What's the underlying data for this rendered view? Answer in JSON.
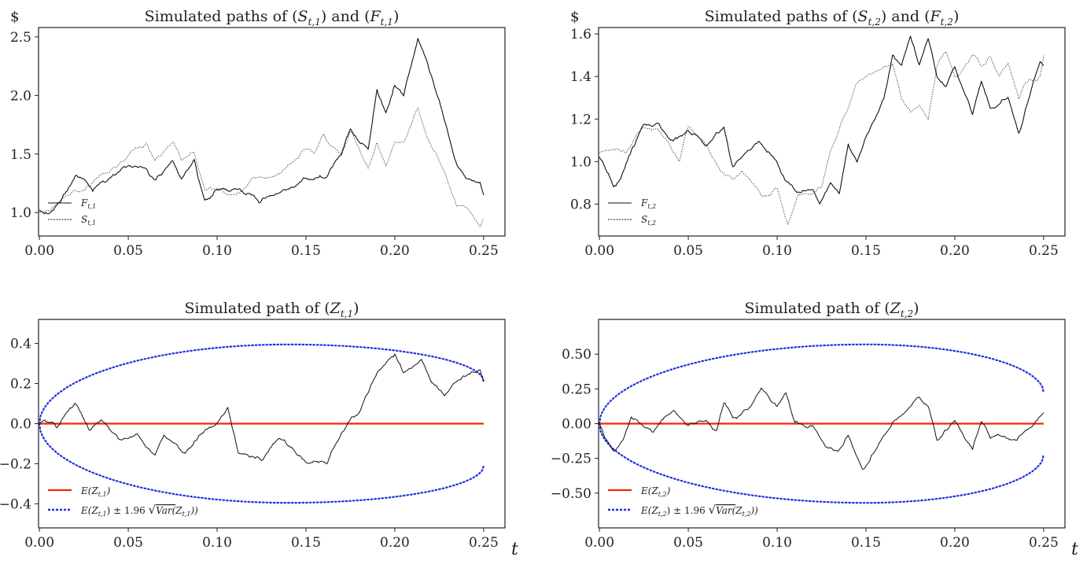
{
  "chart_data": [
    {
      "type": "line",
      "title": "Simulated paths of (S_t,1) and (F_t,1)",
      "title_parts": [
        "Simulated paths of (",
        "S",
        "t,1",
        ") and (",
        "F",
        "t,1",
        ")"
      ],
      "ylabel": "$",
      "xlabel": "",
      "xlim": [
        -0.0005,
        0.262
      ],
      "ylim": [
        0.8,
        2.58
      ],
      "xticks": [
        0.0,
        0.05,
        0.1,
        0.15,
        0.2,
        0.25
      ],
      "xtick_labels": [
        "0.00",
        "0.05",
        "0.10",
        "0.15",
        "0.20",
        "0.25"
      ],
      "yticks": [
        1.0,
        1.5,
        2.0,
        2.5
      ],
      "ytick_labels": [
        "1.0",
        "1.5",
        "2.0",
        "2.5"
      ],
      "legend": "lower-left",
      "series": [
        {
          "name": "F_t,1",
          "label_main": "F",
          "label_sub": "t,1",
          "style": "solid",
          "color": "#111111",
          "x": [
            0,
            0.005,
            0.012,
            0.02,
            0.03,
            0.04,
            0.05,
            0.06,
            0.065,
            0.075,
            0.08,
            0.087,
            0.093,
            0.1,
            0.11,
            0.125,
            0.13,
            0.14,
            0.15,
            0.16,
            0.17,
            0.175,
            0.18,
            0.185,
            0.19,
            0.195,
            0.2,
            0.205,
            0.21,
            0.213,
            0.218,
            0.225,
            0.235,
            0.24,
            0.248,
            0.25
          ],
          "y": [
            1.0,
            0.99,
            1.1,
            1.3,
            1.2,
            1.3,
            1.4,
            1.38,
            1.27,
            1.45,
            1.28,
            1.45,
            1.1,
            1.2,
            1.2,
            1.08,
            1.15,
            1.2,
            1.3,
            1.3,
            1.5,
            1.72,
            1.6,
            1.55,
            2.05,
            1.85,
            2.1,
            2.0,
            2.3,
            2.48,
            2.3,
            1.95,
            1.4,
            1.3,
            1.25,
            1.15
          ]
        },
        {
          "name": "S_t,1",
          "label_main": "S",
          "label_sub": "t,1",
          "style": "dotted",
          "color": "#555555",
          "x": [
            0,
            0.005,
            0.012,
            0.02,
            0.03,
            0.04,
            0.05,
            0.06,
            0.065,
            0.075,
            0.08,
            0.087,
            0.093,
            0.1,
            0.11,
            0.12,
            0.13,
            0.14,
            0.15,
            0.155,
            0.16,
            0.165,
            0.17,
            0.175,
            0.18,
            0.185,
            0.19,
            0.195,
            0.2,
            0.205,
            0.213,
            0.218,
            0.225,
            0.235,
            0.24,
            0.248,
            0.25
          ],
          "y": [
            1.0,
            1.02,
            1.1,
            1.2,
            1.25,
            1.35,
            1.48,
            1.58,
            1.45,
            1.6,
            1.45,
            1.52,
            1.2,
            1.2,
            1.15,
            1.3,
            1.3,
            1.4,
            1.55,
            1.5,
            1.68,
            1.55,
            1.5,
            1.7,
            1.55,
            1.38,
            1.6,
            1.4,
            1.6,
            1.6,
            1.9,
            1.65,
            1.45,
            1.05,
            1.05,
            0.88,
            0.95
          ]
        }
      ]
    },
    {
      "type": "line",
      "title": "Simulated paths of (S_t,2) and (F_t,2)",
      "title_parts": [
        "Simulated paths of (",
        "S",
        "t,2",
        ") and (",
        "F",
        "t,2",
        ")"
      ],
      "ylabel": "$",
      "xlabel": "",
      "xlim": [
        -0.0005,
        0.262
      ],
      "ylim": [
        0.65,
        1.63
      ],
      "xticks": [
        0.0,
        0.05,
        0.1,
        0.15,
        0.2,
        0.25
      ],
      "xtick_labels": [
        "0.00",
        "0.05",
        "0.10",
        "0.15",
        "0.20",
        "0.25"
      ],
      "yticks": [
        0.8,
        1.0,
        1.2,
        1.4,
        1.6
      ],
      "ytick_labels": [
        "0.8",
        "1.0",
        "1.2",
        "1.4",
        "1.6"
      ],
      "legend": "lower-left",
      "series": [
        {
          "name": "F_t,2",
          "label_main": "F",
          "label_sub": "t,2",
          "style": "solid",
          "color": "#111111",
          "x": [
            0,
            0.002,
            0.008,
            0.012,
            0.018,
            0.025,
            0.033,
            0.04,
            0.05,
            0.06,
            0.07,
            0.075,
            0.09,
            0.1,
            0.105,
            0.112,
            0.12,
            0.124,
            0.13,
            0.135,
            0.14,
            0.145,
            0.15,
            0.16,
            0.165,
            0.17,
            0.175,
            0.18,
            0.185,
            0.19,
            0.195,
            0.2,
            0.21,
            0.215,
            0.22,
            0.23,
            0.236,
            0.24,
            0.248,
            0.25
          ],
          "y": [
            1.02,
            1.0,
            0.88,
            0.92,
            1.05,
            1.18,
            1.18,
            1.1,
            1.15,
            1.07,
            1.16,
            0.97,
            1.1,
            1.0,
            0.9,
            0.85,
            0.87,
            0.8,
            0.9,
            0.85,
            1.08,
            1.0,
            1.12,
            1.3,
            1.5,
            1.45,
            1.59,
            1.45,
            1.58,
            1.4,
            1.35,
            1.45,
            1.22,
            1.38,
            1.25,
            1.3,
            1.13,
            1.25,
            1.47,
            1.45
          ]
        },
        {
          "name": "S_t,2",
          "label_main": "S",
          "label_sub": "t,2",
          "style": "dotted",
          "color": "#555555",
          "x": [
            0,
            0.008,
            0.015,
            0.025,
            0.033,
            0.045,
            0.05,
            0.06,
            0.068,
            0.075,
            0.08,
            0.092,
            0.1,
            0.106,
            0.112,
            0.12,
            0.125,
            0.13,
            0.14,
            0.145,
            0.15,
            0.155,
            0.165,
            0.17,
            0.175,
            0.18,
            0.185,
            0.19,
            0.195,
            0.2,
            0.21,
            0.215,
            0.22,
            0.225,
            0.23,
            0.236,
            0.24,
            0.248,
            0.25
          ],
          "y": [
            1.04,
            1.06,
            1.04,
            1.17,
            1.15,
            1.0,
            1.17,
            1.08,
            0.96,
            0.92,
            0.95,
            0.83,
            0.88,
            0.7,
            0.85,
            0.85,
            0.88,
            1.05,
            1.25,
            1.38,
            1.4,
            1.42,
            1.45,
            1.3,
            1.24,
            1.26,
            1.2,
            1.45,
            1.52,
            1.4,
            1.5,
            1.45,
            1.5,
            1.4,
            1.46,
            1.3,
            1.38,
            1.4,
            1.5
          ]
        }
      ]
    },
    {
      "type": "line",
      "title": "Simulated path of (Z_t,1)",
      "title_parts": [
        "Simulated path of (",
        "Z",
        "t,1",
        ")"
      ],
      "ylabel": "",
      "xlabel": "t",
      "xlim": [
        -0.0005,
        0.262
      ],
      "ylim": [
        -0.52,
        0.52
      ],
      "xticks": [
        0.0,
        0.05,
        0.1,
        0.15,
        0.2,
        0.25
      ],
      "xtick_labels": [
        "0.00",
        "0.05",
        "0.10",
        "0.15",
        "0.20",
        "0.25"
      ],
      "yticks": [
        -0.4,
        -0.2,
        0.0,
        0.2,
        0.4
      ],
      "ytick_labels": [
        "−0.4",
        "−0.2",
        "0.0",
        "0.2",
        "0.4"
      ],
      "legend": "lower-left",
      "band_amplitude_max": 0.395,
      "band_end_value": 0.21,
      "series": [
        {
          "name": "Z_t,1",
          "style": "solid",
          "color": "#111111",
          "x": [
            0,
            0.003,
            0.01,
            0.02,
            0.028,
            0.035,
            0.045,
            0.055,
            0.065,
            0.07,
            0.082,
            0.09,
            0.1,
            0.106,
            0.112,
            0.125,
            0.135,
            0.15,
            0.162,
            0.17,
            0.175,
            0.18,
            0.19,
            0.2,
            0.205,
            0.215,
            0.22,
            0.228,
            0.233,
            0.24,
            0.248,
            0.25
          ],
          "y": [
            0.0,
            0.02,
            -0.02,
            0.1,
            -0.03,
            0.02,
            -0.08,
            -0.05,
            -0.16,
            -0.06,
            -0.15,
            -0.06,
            0.0,
            0.08,
            -0.15,
            -0.18,
            -0.07,
            -0.19,
            -0.2,
            -0.05,
            0.02,
            0.05,
            0.25,
            0.34,
            0.25,
            0.32,
            0.22,
            0.14,
            0.2,
            0.24,
            0.27,
            0.21
          ]
        },
        {
          "name": "E(Z_t,1)",
          "label": "E(Z_t,1)",
          "style": "solid",
          "color": "#ff2200",
          "x": [
            0,
            0.25
          ],
          "y": [
            0,
            0
          ]
        },
        {
          "name": "E(Z_t,1) ± 1.96 √Var(Z_t,1)",
          "label": "E(Z_t,1) ± 1.96 √Var(Z_t,1)",
          "style": "dotted",
          "color": "#1f2fe0"
        }
      ],
      "legend_items": [
        {
          "pre": "E(",
          "main": "Z",
          "sub": "t,1",
          "post": ")"
        },
        {
          "pre": "E(",
          "main": "Z",
          "sub": "t,1",
          "mid": ") ± 1.96 ",
          "var": "Var(",
          "main2": "Z",
          "sub2": "t,1",
          "post": "))"
        }
      ]
    },
    {
      "type": "line",
      "title": "Simulated path of (Z_t,2)",
      "title_parts": [
        "Simulated path of (",
        "Z",
        "t,2",
        ")"
      ],
      "ylabel": "",
      "xlabel": "t",
      "xlim": [
        -0.0005,
        0.262
      ],
      "ylim": [
        -0.75,
        0.75
      ],
      "xticks": [
        0.0,
        0.05,
        0.1,
        0.15,
        0.2,
        0.25
      ],
      "xtick_labels": [
        "0.00",
        "0.05",
        "0.10",
        "0.15",
        "0.20",
        "0.25"
      ],
      "yticks": [
        -0.5,
        -0.25,
        0.0,
        0.25,
        0.5
      ],
      "ytick_labels": [
        "−0.50",
        "−0.25",
        "0.00",
        "0.25",
        "0.50"
      ],
      "legend": "lower-left",
      "band_amplitude_max": 0.57,
      "band_end_value": 0.22,
      "series": [
        {
          "name": "Z_t,2",
          "style": "solid",
          "color": "#111111",
          "x": [
            0,
            0.003,
            0.008,
            0.013,
            0.018,
            0.025,
            0.03,
            0.035,
            0.042,
            0.05,
            0.06,
            0.066,
            0.07,
            0.075,
            0.085,
            0.091,
            0.1,
            0.105,
            0.11,
            0.12,
            0.128,
            0.135,
            0.14,
            0.148,
            0.155,
            0.165,
            0.172,
            0.18,
            0.185,
            0.19,
            0.2,
            0.21,
            0.215,
            0.22,
            0.235,
            0.245,
            0.25
          ],
          "y": [
            0.0,
            -0.1,
            -0.2,
            -0.12,
            0.05,
            -0.02,
            -0.06,
            0.02,
            0.1,
            -0.02,
            0.02,
            -0.06,
            0.15,
            0.05,
            0.12,
            0.25,
            0.12,
            0.23,
            0.0,
            -0.02,
            -0.18,
            -0.2,
            -0.08,
            -0.33,
            -0.2,
            0.0,
            0.08,
            0.2,
            0.12,
            -0.12,
            0.02,
            -0.18,
            0.02,
            -0.1,
            -0.12,
            0.0,
            0.08
          ]
        },
        {
          "name": "E(Z_t,2)",
          "label": "E(Z_t,2)",
          "style": "solid",
          "color": "#ff2200",
          "x": [
            0,
            0.25
          ],
          "y": [
            0,
            0
          ]
        },
        {
          "name": "E(Z_t,2) ± 1.96 √Var(Z_t,2)",
          "label": "E(Z_t,2) ± 1.96 √Var(Z_t,2)",
          "style": "dotted",
          "color": "#1f2fe0"
        }
      ],
      "legend_items": [
        {
          "pre": "E(",
          "main": "Z",
          "sub": "t,2",
          "post": ")"
        },
        {
          "pre": "E(",
          "main": "Z",
          "sub": "t,2",
          "mid": ") ± 1.96 ",
          "var": "Var(",
          "main2": "Z",
          "sub2": "t,2",
          "post": "))"
        }
      ]
    }
  ]
}
